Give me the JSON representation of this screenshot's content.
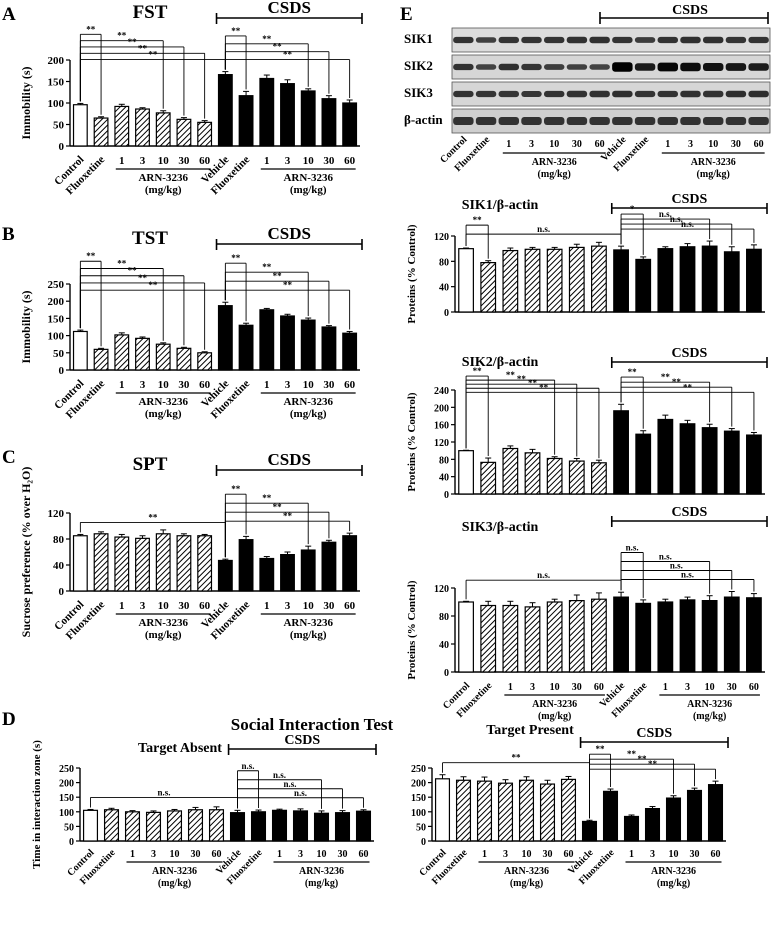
{
  "figure": {
    "panel_letters": [
      "A",
      "B",
      "C",
      "D",
      "E"
    ],
    "social_title": "Social Interaction Test",
    "wb_labels": [
      "SIK1",
      "SIK2",
      "SIK3",
      "β-actin"
    ]
  },
  "legend": {
    "control": "Control",
    "fluoxetine": "Fluoxetine",
    "vehicle": "Vehicle",
    "doses": [
      "1",
      "3",
      "10",
      "30",
      "60"
    ],
    "drug": "ARN-3236",
    "unit": "(mg/kg)",
    "csds": "CSDS"
  },
  "chart_data": [
    {
      "id": "fst",
      "type": "bar",
      "title": "FST",
      "ylabel": "Immobility (s)",
      "ylim": [
        0,
        200
      ],
      "yticks": [
        "0",
        "50",
        "100",
        "150",
        "200"
      ],
      "values": [
        96,
        65,
        92,
        86,
        77,
        62,
        55,
        166,
        117,
        157,
        145,
        128,
        110,
        100
      ],
      "errors": [
        3,
        3,
        5,
        3,
        5,
        4,
        4,
        7,
        10,
        8,
        9,
        5,
        7,
        7
      ],
      "comparisons": [
        {
          "from": 0,
          "to": 1,
          "label": "**"
        },
        {
          "from": 0,
          "to": 4,
          "label": "**"
        },
        {
          "from": 0,
          "to": 5,
          "label": "**"
        },
        {
          "from": 0,
          "to": 6,
          "label": "**"
        },
        {
          "from": 0,
          "to": 7,
          "label": "**"
        },
        {
          "from": 7,
          "to": 8,
          "label": "**"
        },
        {
          "from": 7,
          "to": 11,
          "label": "**"
        },
        {
          "from": 7,
          "to": 12,
          "label": "**"
        },
        {
          "from": 7,
          "to": 13,
          "label": "**"
        }
      ]
    },
    {
      "id": "tst",
      "type": "bar",
      "title": "TST",
      "ylabel": "Immobility (s)",
      "ylim": [
        0,
        250
      ],
      "yticks": [
        "0",
        "50",
        "100",
        "150",
        "200",
        "250"
      ],
      "values": [
        112,
        60,
        102,
        92,
        75,
        63,
        50,
        187,
        130,
        175,
        157,
        145,
        125,
        107
      ],
      "errors": [
        4,
        3,
        6,
        4,
        4,
        3,
        3,
        10,
        6,
        4,
        5,
        6,
        4,
        5
      ],
      "comparisons": [
        {
          "from": 0,
          "to": 1,
          "label": "**"
        },
        {
          "from": 0,
          "to": 4,
          "label": "**"
        },
        {
          "from": 0,
          "to": 5,
          "label": "**"
        },
        {
          "from": 0,
          "to": 6,
          "label": "**"
        },
        {
          "from": 0,
          "to": 7,
          "label": "**"
        },
        {
          "from": 7,
          "to": 8,
          "label": "**"
        },
        {
          "from": 7,
          "to": 11,
          "label": "**"
        },
        {
          "from": 7,
          "to": 12,
          "label": "**"
        },
        {
          "from": 7,
          "to": 13,
          "label": "**"
        }
      ]
    },
    {
      "id": "spt",
      "type": "bar",
      "title": "SPT",
      "ylabel": "Sucrose preference (% over H₂O)",
      "ylim": [
        0,
        120
      ],
      "yticks": [
        "0",
        "40",
        "80",
        "120"
      ],
      "values": [
        85,
        88,
        83,
        81,
        88,
        85,
        85,
        47,
        79,
        50,
        56,
        63,
        75,
        85
      ],
      "errors": [
        2,
        3,
        4,
        4,
        6,
        3,
        2,
        2,
        5,
        3,
        4,
        6,
        3,
        4
      ],
      "comparisons": [
        {
          "from": 0,
          "to": 7,
          "label": "**"
        },
        {
          "from": 7,
          "to": 8,
          "label": "**"
        },
        {
          "from": 7,
          "to": 11,
          "label": "**"
        },
        {
          "from": 7,
          "to": 12,
          "label": "**"
        },
        {
          "from": 7,
          "to": 13,
          "label": "**"
        }
      ]
    },
    {
      "id": "absent",
      "type": "bar",
      "title": "Target Absent",
      "ylabel": "Time in interaction zone (s)",
      "ylim": [
        0,
        250
      ],
      "yticks": [
        "0",
        "50",
        "100",
        "150",
        "200",
        "250"
      ],
      "values": [
        105,
        107,
        100,
        98,
        103,
        107,
        107,
        97,
        100,
        105,
        103,
        95,
        97,
        102
      ],
      "errors": [
        3,
        5,
        4,
        5,
        5,
        8,
        10,
        8,
        6,
        4,
        7,
        8,
        7,
        5
      ],
      "comparisons": [
        {
          "from": 0,
          "to": 7,
          "label": "n.s."
        },
        {
          "from": 7,
          "to": 8,
          "label": "n.s."
        },
        {
          "from": 7,
          "to": 11,
          "label": "n.s."
        },
        {
          "from": 7,
          "to": 12,
          "label": "n.s."
        },
        {
          "from": 7,
          "to": 13,
          "label": "n.s."
        }
      ]
    },
    {
      "id": "present",
      "type": "bar",
      "title": "Target Present",
      "ylabel": "",
      "ylim": [
        0,
        250
      ],
      "yticks": [
        "0",
        "50",
        "100",
        "150",
        "200",
        "250"
      ],
      "values": [
        213,
        208,
        205,
        198,
        208,
        195,
        211,
        67,
        170,
        84,
        111,
        147,
        173,
        193
      ],
      "errors": [
        14,
        12,
        14,
        12,
        12,
        13,
        10,
        4,
        8,
        5,
        7,
        8,
        8,
        12
      ],
      "comparisons": [
        {
          "from": 0,
          "to": 7,
          "label": "**"
        },
        {
          "from": 7,
          "to": 8,
          "label": "**"
        },
        {
          "from": 7,
          "to": 11,
          "label": "**"
        },
        {
          "from": 7,
          "to": 12,
          "label": "**"
        },
        {
          "from": 7,
          "to": 13,
          "label": "**"
        }
      ]
    },
    {
      "id": "sik1",
      "type": "bar",
      "title": "SIK1/β-actin",
      "ylabel": "Proteins (% Control)",
      "ylim": [
        0,
        120
      ],
      "yticks": [
        "0",
        "40",
        "80",
        "120"
      ],
      "values": [
        100,
        78,
        97,
        99,
        99,
        102,
        104,
        98,
        83,
        100,
        103,
        104,
        95,
        99
      ],
      "errors": [
        1,
        3,
        4,
        3,
        3,
        5,
        6,
        6,
        4,
        3,
        5,
        8,
        8,
        7
      ],
      "comparisons": [
        {
          "from": 0,
          "to": 1,
          "label": "**"
        },
        {
          "from": 0,
          "to": 7,
          "label": "n.s."
        },
        {
          "from": 7,
          "to": 8,
          "label": "*"
        },
        {
          "from": 7,
          "to": 11,
          "label": "n.s."
        },
        {
          "from": 7,
          "to": 12,
          "label": "n.s."
        },
        {
          "from": 7,
          "to": 13,
          "label": "n.s."
        }
      ]
    },
    {
      "id": "sik2",
      "type": "bar",
      "title": "SIK2/β-actin",
      "ylabel": "Proteins (% Control)",
      "ylim": [
        0,
        240
      ],
      "yticks": [
        "0",
        "40",
        "80",
        "120",
        "160",
        "200",
        "240"
      ],
      "values": [
        100,
        73,
        105,
        95,
        82,
        76,
        72,
        192,
        138,
        172,
        162,
        153,
        145,
        136
      ],
      "errors": [
        1,
        10,
        6,
        8,
        4,
        6,
        6,
        15,
        8,
        10,
        8,
        8,
        6,
        6
      ],
      "comparisons": [
        {
          "from": 0,
          "to": 1,
          "label": "**"
        },
        {
          "from": 0,
          "to": 4,
          "label": "**"
        },
        {
          "from": 0,
          "to": 5,
          "label": "**"
        },
        {
          "from": 0,
          "to": 6,
          "label": "**"
        },
        {
          "from": 0,
          "to": 7,
          "label": "**"
        },
        {
          "from": 7,
          "to": 8,
          "label": "**"
        },
        {
          "from": 7,
          "to": 11,
          "label": "**"
        },
        {
          "from": 7,
          "to": 12,
          "label": "**"
        },
        {
          "from": 7,
          "to": 13,
          "label": "**"
        }
      ]
    },
    {
      "id": "sik3",
      "type": "bar",
      "title": "SIK3/β-actin",
      "ylabel": "Proteins (% Control)",
      "ylim": [
        0,
        120
      ],
      "yticks": [
        "0",
        "40",
        "80",
        "120"
      ],
      "values": [
        100,
        95,
        95,
        93,
        100,
        102,
        104,
        107,
        98,
        100,
        103,
        102,
        107,
        106
      ],
      "errors": [
        1,
        6,
        6,
        6,
        4,
        8,
        9,
        7,
        5,
        4,
        4,
        7,
        8,
        6
      ],
      "comparisons": [
        {
          "from": 0,
          "to": 7,
          "label": "n.s."
        },
        {
          "from": 7,
          "to": 8,
          "label": "n.s."
        },
        {
          "from": 7,
          "to": 11,
          "label": "n.s."
        },
        {
          "from": 7,
          "to": 12,
          "label": "n.s."
        },
        {
          "from": 7,
          "to": 13,
          "label": "n.s."
        }
      ]
    }
  ]
}
